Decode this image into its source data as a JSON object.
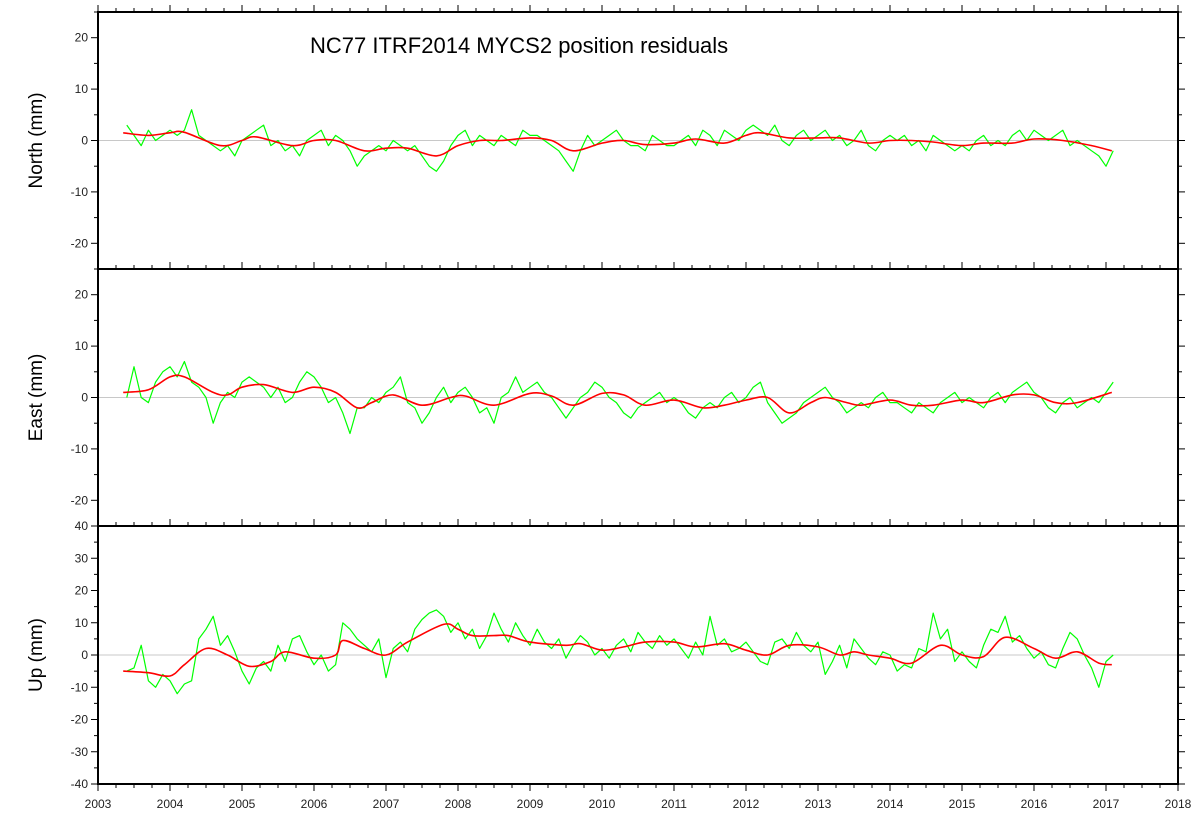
{
  "chart_data": {
    "type": "line",
    "title": "NC77  ITRF2014 MYCS2 position residuals",
    "xlim": [
      2003,
      2018
    ],
    "x_ticks": [
      2003,
      2004,
      2005,
      2006,
      2007,
      2008,
      2009,
      2010,
      2011,
      2012,
      2013,
      2014,
      2015,
      2016,
      2017,
      2018
    ],
    "grid": false,
    "colors": {
      "residual": "#00ff00",
      "model": "#ff0000",
      "zero": "#c8c8c8",
      "axis": "#000000"
    },
    "residual_x_start": 2003.4,
    "residual_x_step": 0.1,
    "panels": [
      {
        "name": "north",
        "ylabel": "North (mm)",
        "ylim": [
          -25,
          25
        ],
        "y_ticks": [
          20,
          10,
          0,
          -10,
          -20
        ],
        "residual": [
          3,
          1,
          -1,
          2,
          0,
          1,
          2,
          1,
          2,
          6,
          1,
          0,
          -1,
          -2,
          -1,
          -3,
          0,
          1,
          2,
          3,
          -1,
          0,
          -2,
          -1,
          -3,
          0,
          1,
          2,
          -1,
          1,
          0,
          -2,
          -5,
          -3,
          -2,
          -1,
          -2,
          0,
          -1,
          -2,
          -1,
          -3,
          -5,
          -6,
          -4,
          -1,
          1,
          2,
          -1,
          1,
          0,
          -1,
          1,
          0,
          -1,
          2,
          1,
          1,
          0,
          -1,
          -2,
          -4,
          -6,
          -2,
          1,
          -1,
          0,
          1,
          2,
          0,
          -1,
          -1,
          -2,
          1,
          0,
          -1,
          -1,
          0,
          1,
          -1,
          2,
          1,
          -1,
          2,
          1,
          0,
          2,
          3,
          2,
          1,
          3,
          0,
          -1,
          1,
          2,
          0,
          1,
          2,
          0,
          1,
          -1,
          0,
          2,
          -1,
          -2,
          0,
          1,
          0,
          1,
          -1,
          0,
          -2,
          1,
          0,
          -1,
          -2,
          -1,
          -2,
          0,
          1,
          -1,
          0,
          -1,
          1,
          2,
          0,
          2,
          1,
          0,
          1,
          2,
          -1,
          0,
          -1,
          -2,
          -3,
          -5,
          -2
        ],
        "model": [
          [
            2003.35,
            1.5
          ],
          [
            2003.7,
            1.0
          ],
          [
            2004.0,
            1.5
          ],
          [
            2004.2,
            1.6
          ],
          [
            2004.7,
            -1
          ],
          [
            2005.0,
            0
          ],
          [
            2005.2,
            0.7
          ],
          [
            2005.7,
            -1
          ],
          [
            2006.0,
            0
          ],
          [
            2006.3,
            0
          ],
          [
            2006.7,
            -2
          ],
          [
            2007.0,
            -1.5
          ],
          [
            2007.3,
            -1.5
          ],
          [
            2007.7,
            -3
          ],
          [
            2008.0,
            -1
          ],
          [
            2008.3,
            0
          ],
          [
            2008.6,
            0
          ],
          [
            2009.0,
            0.5
          ],
          [
            2009.3,
            0
          ],
          [
            2009.6,
            -2
          ],
          [
            2010.0,
            -0.5
          ],
          [
            2010.3,
            0
          ],
          [
            2010.6,
            -0.8
          ],
          [
            2011.0,
            -0.5
          ],
          [
            2011.3,
            0.3
          ],
          [
            2011.7,
            -0.5
          ],
          [
            2012.0,
            1
          ],
          [
            2012.2,
            1.5
          ],
          [
            2012.6,
            0.5
          ],
          [
            2013.0,
            0.5
          ],
          [
            2013.3,
            0.5
          ],
          [
            2013.7,
            -0.5
          ],
          [
            2014.0,
            0
          ],
          [
            2014.3,
            0
          ],
          [
            2014.6,
            -0.3
          ],
          [
            2015.0,
            -1
          ],
          [
            2015.3,
            -0.5
          ],
          [
            2015.7,
            -0.5
          ],
          [
            2016.0,
            0.3
          ],
          [
            2016.4,
            0
          ],
          [
            2016.8,
            -1
          ],
          [
            2017.08,
            -2
          ]
        ]
      },
      {
        "name": "east",
        "ylabel": "East (mm)",
        "ylim": [
          -25,
          25
        ],
        "y_ticks": [
          20,
          10,
          0,
          -10,
          -20
        ],
        "residual": [
          0,
          6,
          0,
          -1,
          3,
          5,
          6,
          4,
          7,
          3,
          2,
          0,
          -5,
          -1,
          1,
          0,
          3,
          4,
          3,
          2,
          0,
          2,
          -1,
          0,
          3,
          5,
          4,
          2,
          -1,
          0,
          -3,
          -7,
          -2,
          -2,
          0,
          -1,
          1,
          2,
          4,
          -1,
          -2,
          -5,
          -3,
          0,
          2,
          -1,
          1,
          2,
          0,
          -3,
          -2,
          -5,
          0,
          1,
          4,
          1,
          2,
          3,
          1,
          0,
          -2,
          -4,
          -2,
          0,
          1,
          3,
          2,
          0,
          -1,
          -3,
          -4,
          -2,
          -1,
          0,
          1,
          -1,
          0,
          -1,
          -3,
          -4,
          -2,
          -1,
          -2,
          0,
          1,
          -1,
          0,
          2,
          3,
          -1,
          -3,
          -5,
          -4,
          -3,
          -1,
          0,
          1,
          2,
          0,
          -1,
          -3,
          -2,
          -1,
          -2,
          0,
          1,
          -1,
          -1,
          -2,
          -3,
          -1,
          -2,
          -3,
          -1,
          0,
          1,
          -1,
          0,
          -1,
          -2,
          0,
          1,
          -1,
          1,
          2,
          3,
          1,
          0,
          -2,
          -3,
          -1,
          0,
          -2,
          -1,
          0,
          -1,
          1,
          3
        ],
        "model": [
          [
            2003.35,
            1
          ],
          [
            2003.7,
            1.5
          ],
          [
            2004.0,
            4
          ],
          [
            2004.2,
            4
          ],
          [
            2004.6,
            1
          ],
          [
            2004.8,
            0.5
          ],
          [
            2005.0,
            2
          ],
          [
            2005.3,
            2.5
          ],
          [
            2005.7,
            1
          ],
          [
            2006.0,
            2
          ],
          [
            2006.3,
            1
          ],
          [
            2006.6,
            -2
          ],
          [
            2006.8,
            -1
          ],
          [
            2007.1,
            0.5
          ],
          [
            2007.5,
            -1.5
          ],
          [
            2007.9,
            0
          ],
          [
            2008.1,
            0.3
          ],
          [
            2008.5,
            -1.5
          ],
          [
            2009.0,
            0.8
          ],
          [
            2009.3,
            0.3
          ],
          [
            2009.6,
            -1.5
          ],
          [
            2010.0,
            0.8
          ],
          [
            2010.3,
            0.5
          ],
          [
            2010.6,
            -1.5
          ],
          [
            2011.0,
            -0.5
          ],
          [
            2011.4,
            -2
          ],
          [
            2011.7,
            -1.5
          ],
          [
            2012.0,
            -0.5
          ],
          [
            2012.3,
            0
          ],
          [
            2012.6,
            -3
          ],
          [
            2012.9,
            -1
          ],
          [
            2013.1,
            0
          ],
          [
            2013.4,
            -1
          ],
          [
            2013.6,
            -1.5
          ],
          [
            2014.0,
            -0.5
          ],
          [
            2014.3,
            -1.5
          ],
          [
            2014.6,
            -1.5
          ],
          [
            2015.0,
            -0.5
          ],
          [
            2015.3,
            -1
          ],
          [
            2015.7,
            0.5
          ],
          [
            2016.0,
            0.5
          ],
          [
            2016.3,
            -1
          ],
          [
            2016.6,
            -1
          ],
          [
            2017.08,
            1
          ]
        ]
      },
      {
        "name": "up",
        "ylabel": "Up (mm)",
        "ylim": [
          -40,
          40
        ],
        "y_ticks": [
          40,
          30,
          20,
          10,
          0,
          -10,
          -20,
          -30,
          -40
        ],
        "residual": [
          -5,
          -4,
          3,
          -8,
          -10,
          -6,
          -8,
          -12,
          -9,
          -8,
          5,
          8,
          12,
          3,
          6,
          1,
          -5,
          -9,
          -4,
          -2,
          -5,
          3,
          -2,
          5,
          6,
          1,
          -3,
          0,
          -5,
          -3,
          10,
          8,
          5,
          3,
          1,
          5,
          -7,
          2,
          4,
          1,
          8,
          11,
          13,
          14,
          12,
          7,
          10,
          5,
          8,
          2,
          6,
          13,
          8,
          4,
          10,
          6,
          3,
          8,
          4,
          2,
          5,
          -1,
          3,
          6,
          4,
          0,
          2,
          -1,
          3,
          5,
          1,
          7,
          4,
          2,
          6,
          3,
          5,
          2,
          -1,
          4,
          0,
          12,
          3,
          5,
          1,
          2,
          4,
          1,
          -2,
          -3,
          4,
          5,
          2,
          7,
          3,
          1,
          4,
          -6,
          -2,
          3,
          -4,
          5,
          2,
          -1,
          -3,
          1,
          0,
          -5,
          -3,
          -4,
          2,
          1,
          13,
          5,
          8,
          -2,
          1,
          -2,
          -4,
          3,
          8,
          7,
          12,
          4,
          6,
          2,
          -1,
          1,
          -3,
          -4,
          2,
          7,
          5,
          0,
          -4,
          -10,
          -2,
          0
        ],
        "model": [
          [
            2003.35,
            -5
          ],
          [
            2003.7,
            -5.5
          ],
          [
            2004.0,
            -6.5
          ],
          [
            2004.2,
            -3
          ],
          [
            2004.5,
            2
          ],
          [
            2004.8,
            0
          ],
          [
            2005.1,
            -3.5
          ],
          [
            2005.4,
            -2
          ],
          [
            2005.6,
            1
          ],
          [
            2006.0,
            -1
          ],
          [
            2006.3,
            0
          ],
          [
            2006.4,
            4.5
          ],
          [
            2006.7,
            2
          ],
          [
            2007.0,
            0
          ],
          [
            2007.3,
            4
          ],
          [
            2007.8,
            9.5
          ],
          [
            2008.0,
            8
          ],
          [
            2008.2,
            6
          ],
          [
            2008.5,
            6
          ],
          [
            2008.7,
            6
          ],
          [
            2009.0,
            4
          ],
          [
            2009.5,
            3
          ],
          [
            2009.7,
            3.5
          ],
          [
            2010.0,
            1.5
          ],
          [
            2010.3,
            2.5
          ],
          [
            2010.6,
            4
          ],
          [
            2011.0,
            4
          ],
          [
            2011.3,
            2.5
          ],
          [
            2011.7,
            3.5
          ],
          [
            2012.0,
            1.5
          ],
          [
            2012.3,
            0
          ],
          [
            2012.6,
            3
          ],
          [
            2013.0,
            2.5
          ],
          [
            2013.3,
            0
          ],
          [
            2013.5,
            1
          ],
          [
            2013.7,
            0
          ],
          [
            2014.0,
            -1
          ],
          [
            2014.3,
            -2.5
          ],
          [
            2014.7,
            3
          ],
          [
            2015.0,
            0
          ],
          [
            2015.3,
            -0.5
          ],
          [
            2015.6,
            5.5
          ],
          [
            2016.0,
            2
          ],
          [
            2016.3,
            -1
          ],
          [
            2016.6,
            1
          ],
          [
            2016.9,
            -2.5
          ],
          [
            2017.08,
            -3
          ]
        ]
      }
    ]
  }
}
